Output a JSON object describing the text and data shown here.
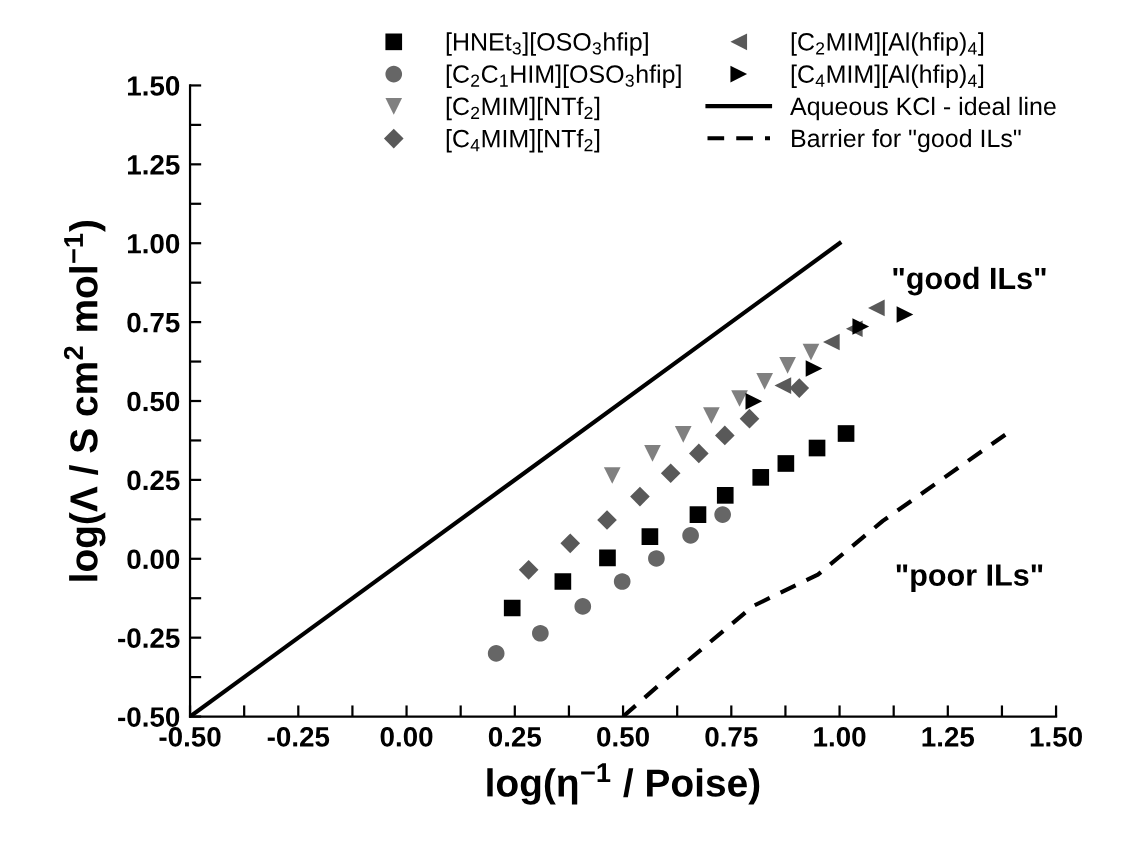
{
  "chart_data": {
    "type": "scatter",
    "xlabel": "log(η$^{−1}$ / Poise)",
    "ylabel": "log(Λ / S cm$^{2}$ mol$^{−1}$)",
    "xlim": [
      -0.5,
      1.5
    ],
    "ylim": [
      -0.5,
      1.5
    ],
    "xticks": [
      {
        "value": -0.375,
        "label": null
      },
      {
        "value": -0.5,
        "label": "-0.50"
      },
      {
        "value": -0.25,
        "label": "-0.25"
      },
      {
        "value": -0.125,
        "label": null
      },
      {
        "value": 0,
        "label": "0.00"
      },
      {
        "value": 0.125,
        "label": null
      },
      {
        "value": 0.25,
        "label": "0.25"
      },
      {
        "value": 0.375,
        "label": null
      },
      {
        "value": 0.5,
        "label": "0.50"
      },
      {
        "value": 0.625,
        "label": null
      },
      {
        "value": 0.75,
        "label": "0.75"
      },
      {
        "value": 0.875,
        "label": null
      },
      {
        "value": 1.0,
        "label": "1.00"
      },
      {
        "value": 1.125,
        "label": null
      },
      {
        "value": 1.25,
        "label": "1.25"
      },
      {
        "value": 1.375,
        "label": null
      },
      {
        "value": 1.5,
        "label": "1.50"
      }
    ],
    "yticks": [
      {
        "value": -0.5,
        "label": "-0.50"
      },
      {
        "value": -0.375,
        "label": null
      },
      {
        "value": -0.25,
        "label": "-0.25"
      },
      {
        "value": -0.125,
        "label": null
      },
      {
        "value": 0,
        "label": "0.00"
      },
      {
        "value": 0.125,
        "label": null
      },
      {
        "value": 0.25,
        "label": "0.25"
      },
      {
        "value": 0.375,
        "label": null
      },
      {
        "value": 0.5,
        "label": "0.50"
      },
      {
        "value": 0.625,
        "label": null
      },
      {
        "value": 0.75,
        "label": "0.75"
      },
      {
        "value": 0.875,
        "label": null
      },
      {
        "value": 1.0,
        "label": "1.00"
      },
      {
        "value": 1.125,
        "label": null
      },
      {
        "value": 1.25,
        "label": "1.25"
      },
      {
        "value": 1.375,
        "label": null
      },
      {
        "value": 1.5,
        "label": "1.50"
      }
    ],
    "grid": false,
    "legend": "top",
    "series": [
      {
        "name": "[HNEt$_{3}$][OSO$_{3}$hfip]",
        "color": "#000000",
        "marker": "square",
        "x": [
          0.244,
          0.361,
          0.464,
          0.562,
          0.673,
          0.736,
          0.818,
          0.876,
          0.948,
          1.015
        ],
        "values": [
          -0.156,
          -0.072,
          0.003,
          0.07,
          0.14,
          0.201,
          0.258,
          0.302,
          0.351,
          0.397
        ]
      },
      {
        "name": "[C$_{2}$C$_{1}$HIM][OSO$_{3}$hfip]",
        "color": "#666666",
        "marker": "circle",
        "x": [
          0.207,
          0.309,
          0.407,
          0.498,
          0.577,
          0.656,
          0.73
        ],
        "values": [
          -0.3,
          -0.236,
          -0.151,
          -0.072,
          0.001,
          0.074,
          0.14
        ]
      },
      {
        "name": "[C$_{2}$MIM][NTf$_{2}$]",
        "color": "#808080",
        "marker": "triangle-down",
        "x": [
          0.475,
          0.568,
          0.639,
          0.704,
          0.769,
          0.827,
          0.88,
          0.934
        ],
        "values": [
          0.264,
          0.334,
          0.394,
          0.454,
          0.508,
          0.562,
          0.613,
          0.655
        ]
      },
      {
        "name": "[C$_{4}$MIM][NTf$_{2}$]",
        "color": "#595959",
        "marker": "diamond",
        "x": [
          0.282,
          0.378,
          0.463,
          0.539,
          0.61,
          0.675,
          0.735,
          0.792,
          0.907
        ],
        "values": [
          -0.035,
          0.049,
          0.123,
          0.197,
          0.271,
          0.334,
          0.391,
          0.444,
          0.541
        ]
      },
      {
        "name": "[C$_{2}$MIM][Al(hfip)$_{4}$]",
        "color": "#595959",
        "marker": "triangle-left",
        "x": [
          0.869,
          0.981,
          1.034,
          1.085
        ],
        "values": [
          0.549,
          0.687,
          0.729,
          0.795
        ]
      },
      {
        "name": "[C$_{4}$MIM][Al(hfip)$_{4}$]",
        "color": "#000000",
        "marker": "triangle-right",
        "x": [
          0.802,
          0.941,
          1.049,
          1.151
        ],
        "values": [
          0.499,
          0.603,
          0.736,
          0.774
        ]
      },
      {
        "name": "Aqueous KCl - ideal line",
        "type": "line",
        "color": "#000000",
        "marker": "none",
        "line_style": "solid",
        "x": [
          -0.5,
          1.0
        ],
        "values": [
          -0.5,
          1.0
        ]
      },
      {
        "name": "Barrier for \"good ILs\"",
        "type": "line",
        "color": "#000000",
        "marker": "none",
        "line_style": "dashed",
        "x": [
          0.5,
          0.6,
          0.8,
          0.95,
          1.1,
          1.4
        ],
        "values": [
          -0.5,
          -0.38,
          -0.15,
          -0.05,
          0.12,
          0.41
        ]
      }
    ],
    "annotations": [
      "\"good ILs\"",
      "\"poor ILs\""
    ]
  }
}
